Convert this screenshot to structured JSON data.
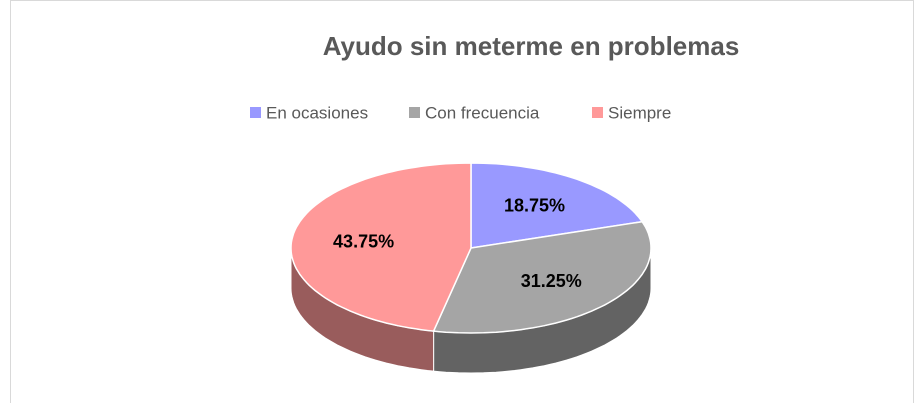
{
  "chart_data": {
    "type": "pie",
    "title": "Ayudo sin meterme en problemas",
    "categories": [
      "En ocasiones",
      "Con frecuencia",
      "Siempre"
    ],
    "values": [
      18.75,
      31.25,
      43.75
    ],
    "value_labels": [
      "18.75%",
      "31.25%",
      "43.75%"
    ],
    "colors": [
      "#9999ff",
      "#a5a5a5",
      "#ff9999"
    ],
    "legend": "top"
  }
}
